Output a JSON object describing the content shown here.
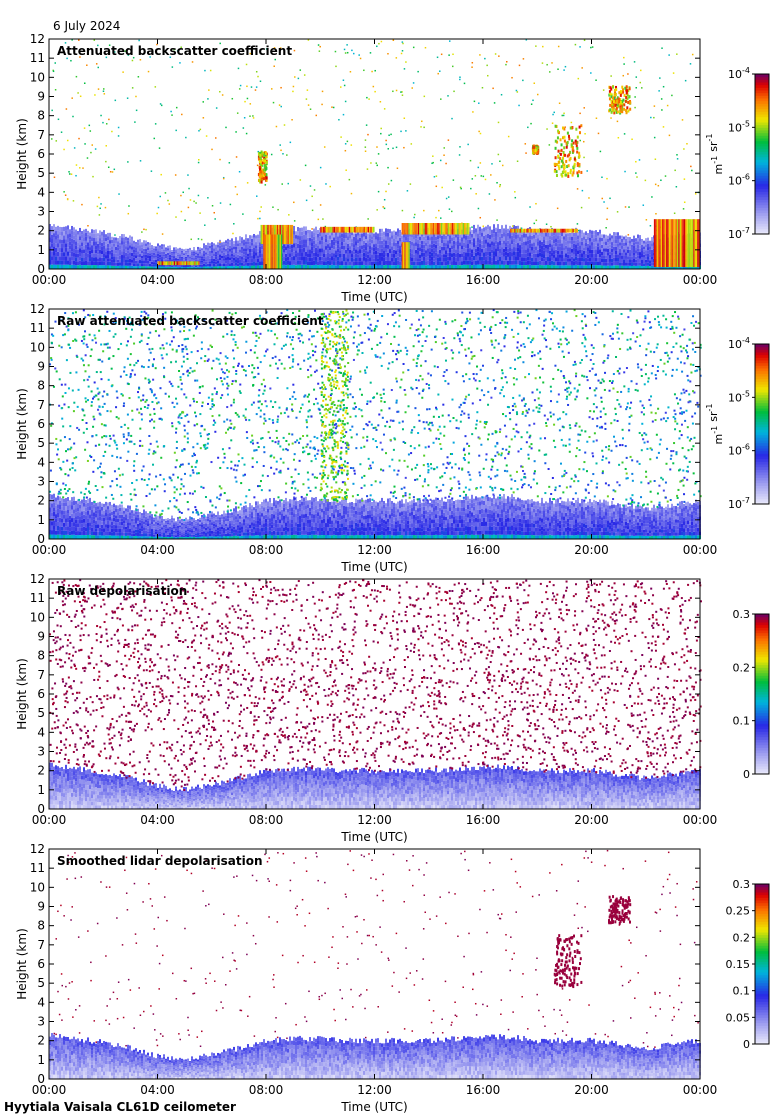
{
  "header": {
    "date": "6 July 2024"
  },
  "footer": {
    "site_label": "Hyytiala Vaisala CL61D ceilometer"
  },
  "chart_data": [
    {
      "type": "heatmap",
      "title": "Attenuated backscatter coefficient",
      "xlabel": "Time (UTC)",
      "ylabel": "Height (km)",
      "xticks": [
        "00:00",
        "04:00",
        "08:00",
        "12:00",
        "16:00",
        "20:00",
        "00:00"
      ],
      "xlim": [
        0,
        24
      ],
      "ylim": [
        0,
        12
      ],
      "yticks": [
        0,
        1,
        2,
        3,
        4,
        5,
        6,
        7,
        8,
        9,
        10,
        11,
        12
      ],
      "colorbar": {
        "scale": "log",
        "ticks": [
          "10-7",
          "10-6",
          "10-5",
          "10-4"
        ],
        "label": "m-1 sr-1"
      },
      "features": {
        "boundary_layer_top_km": [
          2.3,
          2.1,
          1.9,
          1.6,
          1.2,
          1.0,
          1.3,
          1.6,
          2.0,
          2.1,
          2.1,
          2.0,
          2.0,
          2.0,
          2.0,
          2.1,
          2.2,
          2.2,
          2.0,
          2.0,
          2.0,
          1.8,
          1.6,
          1.8,
          2.0
        ],
        "cloud_layers": [
          {
            "t0": 4.0,
            "t1": 5.5,
            "h0": 0.2,
            "h1": 0.4
          },
          {
            "t0": 7.8,
            "t1": 9.0,
            "h0": 1.3,
            "h1": 2.3
          },
          {
            "t0": 10.0,
            "t1": 12.0,
            "h0": 1.9,
            "h1": 2.2
          },
          {
            "t0": 13.0,
            "t1": 15.5,
            "h0": 1.8,
            "h1": 2.4
          },
          {
            "t0": 17.0,
            "t1": 19.5,
            "h0": 1.9,
            "h1": 2.1
          },
          {
            "t0": 22.3,
            "t1": 24.0,
            "h0": 0.1,
            "h1": 2.6
          }
        ],
        "upper_clouds": [
          {
            "t0": 7.7,
            "t1": 8.0,
            "h0": 4.6,
            "h1": 6.2
          },
          {
            "t0": 17.8,
            "t1": 18.0,
            "h0": 6.1,
            "h1": 6.5
          },
          {
            "t0": 18.6,
            "t1": 19.6,
            "h0": 4.9,
            "h1": 7.6
          },
          {
            "t0": 20.6,
            "t1": 21.4,
            "h0": 8.2,
            "h1": 9.6
          }
        ],
        "precipitation_shafts": [
          {
            "t0": 7.9,
            "t1": 8.6,
            "h0": 0,
            "h1": 1.8
          },
          {
            "t0": 13.0,
            "t1": 13.3,
            "h0": 0,
            "h1": 1.4
          }
        ]
      }
    },
    {
      "type": "heatmap",
      "title": "Raw attenuated backscatter coefficient",
      "xlabel": "Time (UTC)",
      "ylabel": "Height (km)",
      "xticks": [
        "00:00",
        "04:00",
        "08:00",
        "12:00",
        "16:00",
        "20:00",
        "00:00"
      ],
      "xlim": [
        0,
        24
      ],
      "ylim": [
        0,
        12
      ],
      "yticks": [
        0,
        1,
        2,
        3,
        4,
        5,
        6,
        7,
        8,
        9,
        10,
        11,
        12
      ],
      "colorbar": {
        "scale": "log",
        "ticks": [
          "10-7",
          "10-6",
          "10-5",
          "10-4"
        ],
        "label": "m-1 sr-1"
      },
      "features": {
        "noise_background": "dense speckle at all heights",
        "boundary_layer_top_km": [
          2.3,
          2.1,
          1.9,
          1.6,
          1.2,
          1.0,
          1.3,
          1.6,
          2.0,
          2.1,
          2.1,
          2.0,
          2.0,
          2.0,
          2.0,
          2.1,
          2.2,
          2.2,
          2.0,
          2.0,
          2.0,
          1.8,
          1.6,
          1.8,
          2.0
        ],
        "vertical_streaks": [
          {
            "t0": 10.0,
            "t1": 11.0
          }
        ]
      }
    },
    {
      "type": "heatmap",
      "title": "Raw depolarisation",
      "xlabel": "Time (UTC)",
      "ylabel": "Height (km)",
      "xticks": [
        "00:00",
        "04:00",
        "08:00",
        "12:00",
        "16:00",
        "20:00",
        "00:00"
      ],
      "xlim": [
        0,
        24
      ],
      "ylim": [
        0,
        12
      ],
      "yticks": [
        0,
        1,
        2,
        3,
        4,
        5,
        6,
        7,
        8,
        9,
        10,
        11,
        12
      ],
      "colorbar": {
        "scale": "linear",
        "ticks": [
          "0",
          "0.1",
          "0.2",
          "0.3"
        ],
        "range": [
          0,
          0.3
        ]
      },
      "features": {
        "noise_background": "dense speckle above boundary layer"
      }
    },
    {
      "type": "heatmap",
      "title": "Smoothed lidar depolarisation",
      "xlabel": "Time (UTC)",
      "ylabel": "Height (km)",
      "xticks": [
        "00:00",
        "04:00",
        "08:00",
        "12:00",
        "16:00",
        "20:00",
        "00:00"
      ],
      "xlim": [
        0,
        24
      ],
      "ylim": [
        0,
        12
      ],
      "yticks": [
        0,
        1,
        2,
        3,
        4,
        5,
        6,
        7,
        8,
        9,
        10,
        11,
        12
      ],
      "colorbar": {
        "scale": "linear",
        "ticks": [
          "0",
          "0.05",
          "0.1",
          "0.15",
          "0.2",
          "0.25",
          "0.3"
        ],
        "range": [
          0,
          0.3
        ]
      },
      "features": {
        "upper_clouds": [
          {
            "t0": 18.6,
            "t1": 19.6,
            "h0": 4.9,
            "h1": 7.6
          },
          {
            "t0": 20.6,
            "t1": 21.4,
            "h0": 8.2,
            "h1": 9.6
          }
        ]
      }
    }
  ]
}
